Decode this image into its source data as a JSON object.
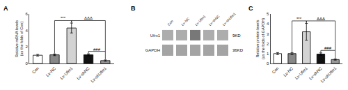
{
  "chart_data": [
    {
      "type": "bar",
      "title": "A",
      "categories": [
        "Con",
        "Lv-NC",
        "Lv-Ufm1",
        "Lv-shNC",
        "Lv-shUfm1"
      ],
      "values": [
        1.0,
        1.05,
        4.3,
        1.05,
        0.35
      ],
      "errors": [
        0.1,
        0.1,
        0.6,
        0.12,
        0.08
      ],
      "ylabel": "Relative mRNA levels\n(as the folds of Con)",
      "ylim": [
        0,
        6
      ],
      "yticks": [
        0,
        2,
        4,
        6
      ],
      "colors": [
        "#ffffff",
        "#888888",
        "#d3d3d3",
        "#111111",
        "#999999"
      ],
      "grid": false,
      "annotations": [
        {
          "text": "***",
          "categories": [
            "Lv-NC",
            "Lv-Ufm1"
          ]
        },
        {
          "text": "ΔΔΔ",
          "categories": [
            "Lv-Ufm1",
            "Lv-shUfm1"
          ]
        },
        {
          "text": "###",
          "categories": [
            "Lv-shNC",
            "Lv-shUfm1"
          ]
        }
      ]
    },
    {
      "type": "heatmap",
      "title": "B",
      "categories": [
        "Con",
        "Lv-NC",
        "Lv-Ufm1",
        "Lv-shNC",
        "Lv-shUfm1"
      ],
      "rows": [
        "Ufm1",
        "GAPDH"
      ],
      "cells": [
        [
          0.38,
          0.38,
          0.62,
          0.38,
          0.38
        ],
        [
          0.42,
          0.42,
          0.42,
          0.42,
          0.42
        ]
      ],
      "zlim": [
        0,
        1
      ],
      "annotations": [
        {
          "text": "9KD",
          "row": "Ufm1"
        },
        {
          "text": "36KD",
          "row": "GAPDH"
        }
      ]
    },
    {
      "type": "bar",
      "title": "C",
      "categories": [
        "Con",
        "Lv-NC",
        "Lv-Ufm1",
        "Lv-shNC",
        "Lv-shUfm1"
      ],
      "values": [
        1.0,
        1.0,
        3.2,
        0.95,
        0.4
      ],
      "errors": [
        0.1,
        0.1,
        0.85,
        0.12,
        0.06
      ],
      "ylabel": "Relative protein levels\n(as the folds of GAPDH)",
      "ylim": [
        0,
        5
      ],
      "yticks": [
        0,
        1,
        2,
        3,
        4,
        5
      ],
      "colors": [
        "#ffffff",
        "#888888",
        "#d3d3d3",
        "#111111",
        "#999999"
      ],
      "grid": false,
      "annotations": [
        {
          "text": "***",
          "categories": [
            "Lv-NC",
            "Lv-Ufm1"
          ]
        },
        {
          "text": "ΔΔΔ",
          "categories": [
            "Lv-Ufm1",
            "Lv-shUfm1"
          ]
        },
        {
          "text": "###",
          "categories": [
            "Lv-shNC",
            "Lv-shUfm1"
          ]
        }
      ]
    }
  ]
}
